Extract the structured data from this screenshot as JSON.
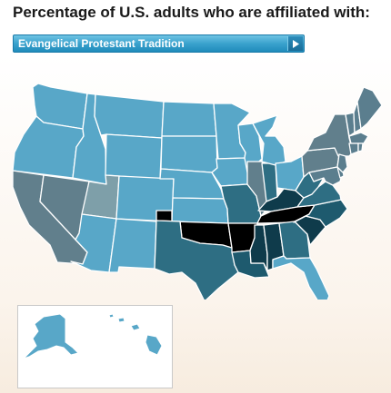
{
  "title": "Percentage of U.S. adults who are affiliated with:",
  "dropdown": {
    "selected": "Evangelical Protestant Tradition",
    "icon": "triangle-right-icon"
  },
  "colors": {
    "level1": "#58a7c8",
    "level2": "#7e9fa9",
    "level3": "#617f8c",
    "level4": "#5b7e8e",
    "level5": "#2e6e83",
    "level6": "#1e5a6e",
    "level7": "#0f3b4b",
    "level8": "#000000",
    "border": "#ffffff",
    "accent": "#3aa2cd"
  },
  "map_shading": {
    "WA": "level1",
    "OR": "level1",
    "ID": "level1",
    "MT": "level1",
    "WY": "level1",
    "ND": "level1",
    "SD": "level1",
    "NE": "level1",
    "MN": "level1",
    "WI": "level1",
    "IA": "level1",
    "MI": "level1",
    "OH": "level1",
    "CO": "level1",
    "AZ": "level1",
    "NM": "level1",
    "KS": "level1",
    "FL": "level1",
    "AK": "level1",
    "HI": "level1",
    "UT": "level2",
    "CA": "level3",
    "NV": "level3",
    "IL": "level3",
    "NY": "level3",
    "PA": "level3",
    "ME": "level4",
    "NH": "level4",
    "VT": "level4",
    "MA": "level4",
    "CT": "level4",
    "RI": "level4",
    "NJ": "level4",
    "DE": "level4",
    "MD": "level4",
    "MO": "level5",
    "IN": "level5",
    "TX": "level5",
    "GA": "level5",
    "VA": "level5",
    "WV": "level5",
    "LA": "level6",
    "NC": "level6",
    "KY": "level7",
    "MS": "level7",
    "AL": "level7",
    "SC": "level7",
    "OK": "level8",
    "AR": "level8",
    "TN": "level8"
  }
}
